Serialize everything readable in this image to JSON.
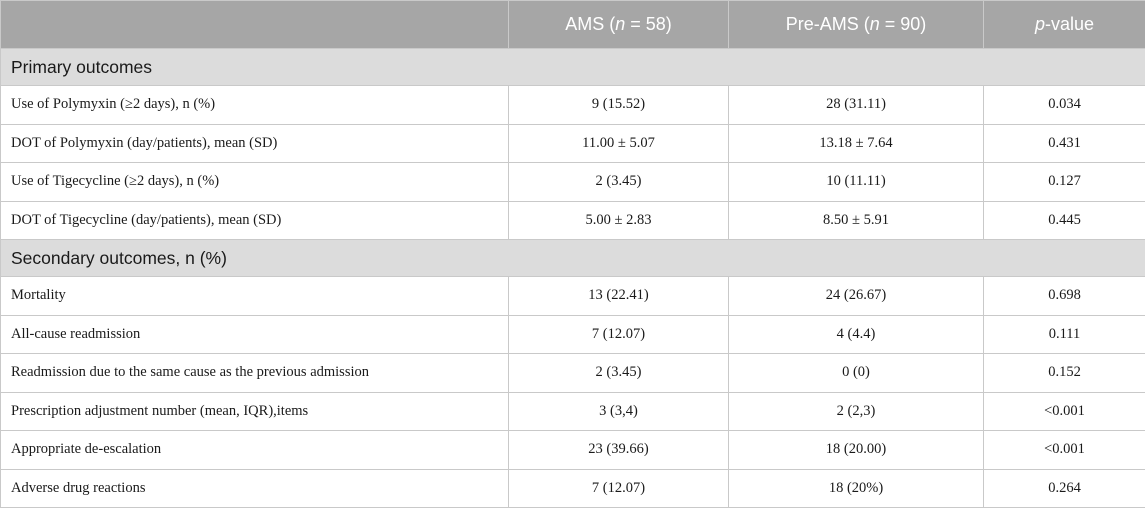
{
  "header": {
    "col1": "",
    "ams_label": "AMS (",
    "ams_n": "n",
    "ams_rest": " = 58)",
    "pre_label": "Pre-AMS (",
    "pre_n": "n",
    "pre_rest": " = 90)",
    "p_italic": "p",
    "p_rest": "-value"
  },
  "sections": [
    {
      "title": "Primary outcomes",
      "rows": [
        {
          "label": "Use of Polymyxin (≥2 days), n (%)",
          "ams": "9 (15.52)",
          "pre": "28 (31.11)",
          "p": "0.034"
        },
        {
          "label": "DOT of Polymyxin (day/patients), mean (SD)",
          "ams": "11.00 ± 5.07",
          "pre": "13.18 ± 7.64",
          "p": "0.431"
        },
        {
          "label": "Use of Tigecycline (≥2 days), n (%)",
          "ams": "2 (3.45)",
          "pre": "10 (11.11)",
          "p": "0.127"
        },
        {
          "label": "DOT of Tigecycline (day/patients), mean (SD)",
          "ams": "5.00 ± 2.83",
          "pre": "8.50 ± 5.91",
          "p": "0.445"
        }
      ]
    },
    {
      "title": "Secondary outcomes, n (%)",
      "rows": [
        {
          "label": "Mortality",
          "ams": "13 (22.41)",
          "pre": "24 (26.67)",
          "p": "0.698"
        },
        {
          "label": "All-cause readmission",
          "ams": "7 (12.07)",
          "pre": "4 (4.4)",
          "p": "0.111"
        },
        {
          "label": "Readmission due to the same cause as the previous admission",
          "ams": "2 (3.45)",
          "pre": "0 (0)",
          "p": "0.152"
        },
        {
          "label": "Prescription adjustment number (mean, IQR),items",
          "ams": "3 (3,4)",
          "pre": "2 (2,3)",
          "p": "<0.001"
        },
        {
          "label": "Appropriate de-escalation",
          "ams": "23 (39.66)",
          "pre": "18 (20.00)",
          "p": "<0.001"
        },
        {
          "label": "Adverse drug reactions",
          "ams": "7 (12.07)",
          "pre": "18 (20%)",
          "p": "0.264"
        }
      ]
    }
  ]
}
